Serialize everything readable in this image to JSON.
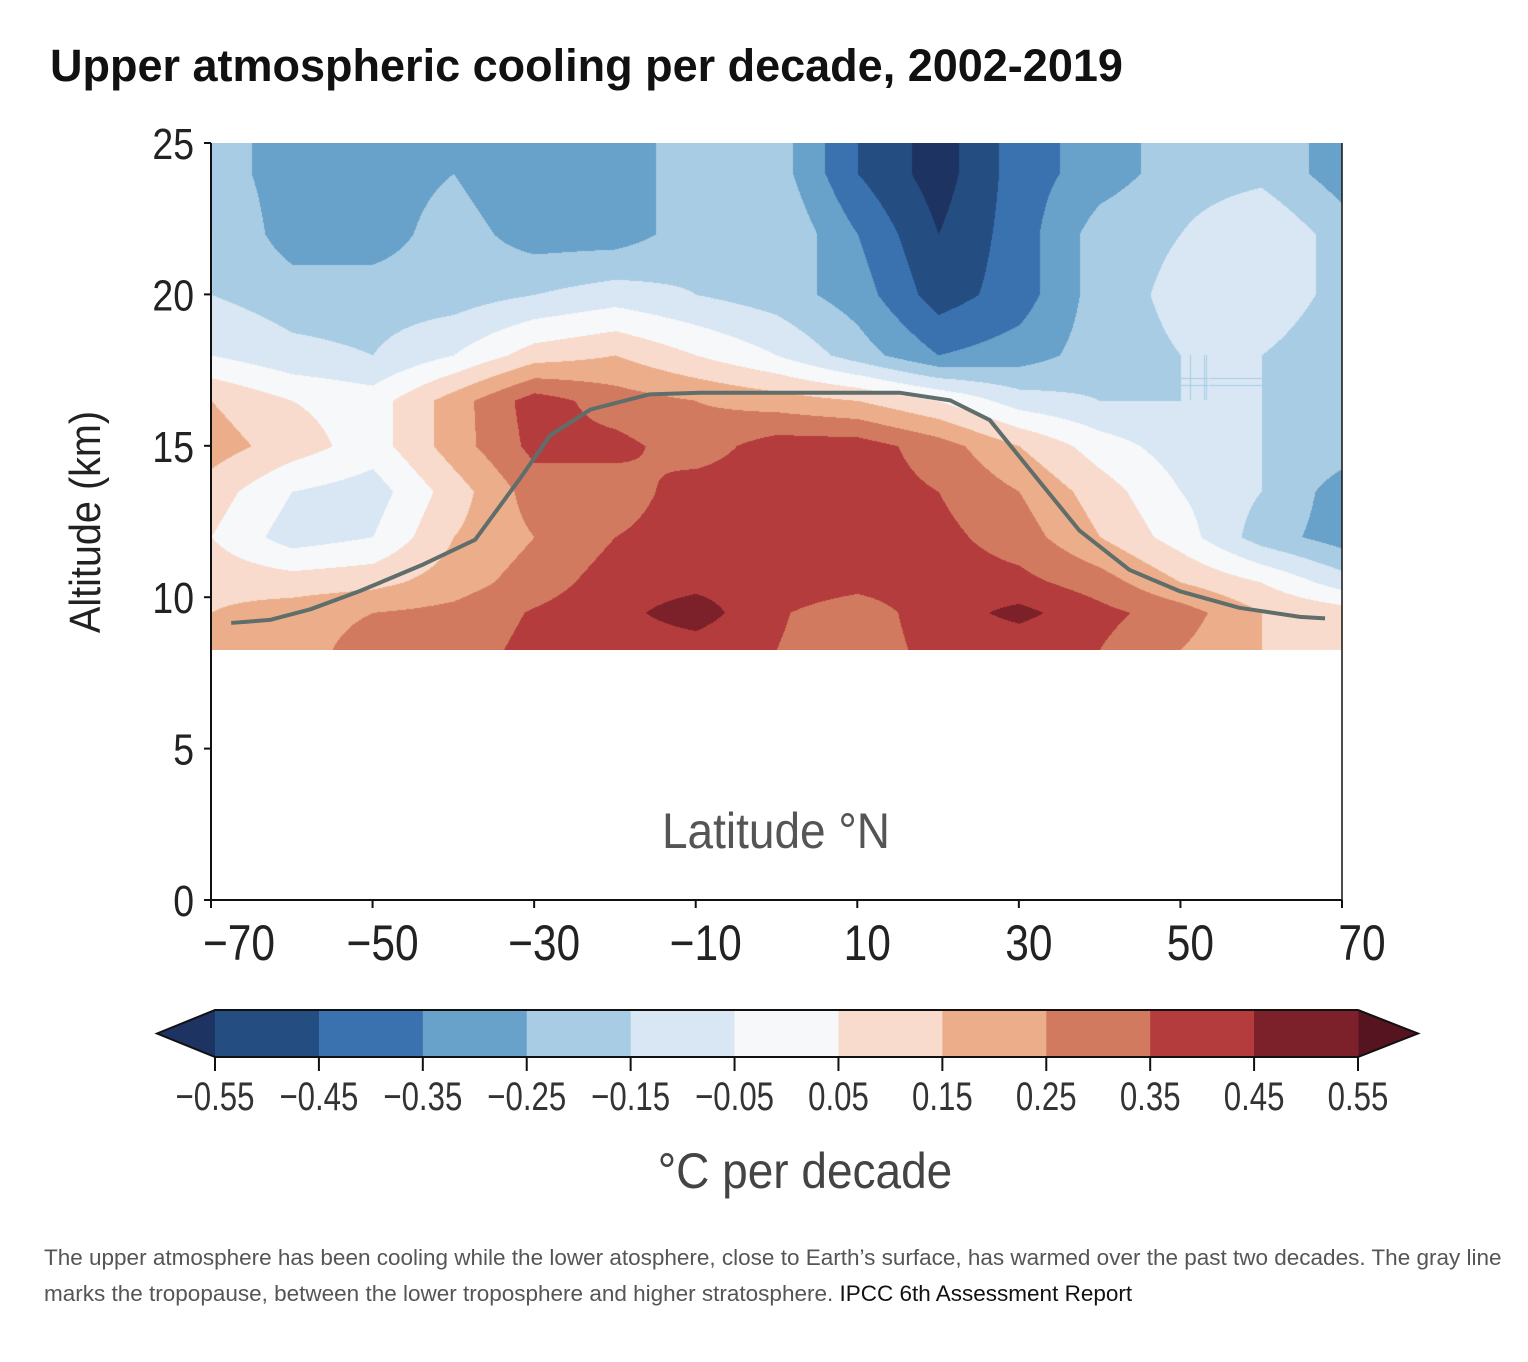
{
  "chart_data": {
    "type": "heatmap",
    "title": "Upper atmospheric cooling per decade, 2002-2019",
    "xlabel": "Latitude °N",
    "ylabel": "Altitude (km)",
    "xlim": [
      -70,
      70
    ],
    "ylim": [
      0,
      25
    ],
    "xticks": [
      "−70",
      "−50",
      "−30",
      "−10",
      "10",
      "30",
      "50",
      "70"
    ],
    "xtick_values": [
      -70,
      -50,
      -30,
      -10,
      10,
      30,
      50,
      70
    ],
    "yticks": [
      "0",
      "5",
      "10",
      "15",
      "20",
      "25"
    ],
    "ytick_values": [
      0,
      5,
      10,
      15,
      20,
      25
    ],
    "data_alt_range": [
      8.25,
      25
    ],
    "lat": [
      -70,
      -60,
      -50,
      -40,
      -30,
      -20,
      -10,
      0,
      10,
      20,
      30,
      40,
      50,
      60,
      70
    ],
    "alt": [
      8.3,
      9.5,
      10.5,
      12,
      13.5,
      15,
      16.5,
      18,
      20,
      22,
      24,
      25
    ],
    "values": [
      [
        0.15,
        0.2,
        0.3,
        0.3,
        0.38,
        0.4,
        0.4,
        0.35,
        0.3,
        0.38,
        0.38,
        0.35,
        0.25,
        0.15,
        0.1
      ],
      [
        0.15,
        0.2,
        0.25,
        0.28,
        0.36,
        0.42,
        0.5,
        0.36,
        0.3,
        0.4,
        0.48,
        0.38,
        0.3,
        0.15,
        0.1
      ],
      [
        0.12,
        0.1,
        0.12,
        0.2,
        0.3,
        0.4,
        0.42,
        0.4,
        0.38,
        0.4,
        0.38,
        0.3,
        0.15,
        0.05,
        -0.1
      ],
      [
        0.05,
        -0.1,
        -0.05,
        0.15,
        0.25,
        0.35,
        0.4,
        0.4,
        0.4,
        0.38,
        0.3,
        0.15,
        0.0,
        -0.2,
        -0.3
      ],
      [
        0.1,
        -0.05,
        -0.1,
        0.1,
        0.3,
        0.3,
        0.4,
        0.4,
        0.4,
        0.35,
        0.25,
        0.1,
        -0.05,
        -0.15,
        -0.3
      ],
      [
        0.2,
        0.1,
        0.0,
        0.2,
        0.38,
        0.38,
        0.3,
        0.4,
        0.4,
        0.3,
        0.15,
        0.0,
        -0.1,
        -0.15,
        -0.2
      ],
      [
        0.15,
        0.05,
        0.0,
        0.2,
        0.4,
        0.3,
        0.25,
        0.2,
        0.15,
        0.05,
        -0.1,
        -0.15,
        -0.15,
        -0.15,
        -0.25
      ],
      [
        -0.05,
        -0.12,
        -0.15,
        -0.05,
        0.1,
        0.15,
        0.05,
        -0.05,
        -0.2,
        -0.35,
        -0.3,
        -0.2,
        -0.15,
        -0.15,
        -0.25
      ],
      [
        -0.15,
        -0.2,
        -0.2,
        -0.2,
        -0.15,
        -0.1,
        -0.15,
        -0.2,
        -0.3,
        -0.5,
        -0.4,
        -0.2,
        -0.12,
        -0.05,
        -0.2
      ],
      [
        -0.15,
        -0.3,
        -0.3,
        -0.2,
        -0.3,
        -0.3,
        -0.2,
        -0.15,
        -0.35,
        -0.55,
        -0.4,
        -0.2,
        -0.15,
        -0.05,
        -0.2
      ],
      [
        -0.2,
        -0.3,
        -0.3,
        -0.25,
        -0.35,
        -0.3,
        -0.2,
        -0.2,
        -0.45,
        -0.6,
        -0.4,
        -0.3,
        -0.2,
        -0.18,
        -0.3
      ],
      [
        -0.2,
        -0.3,
        -0.3,
        -0.25,
        -0.35,
        -0.3,
        -0.2,
        -0.2,
        -0.45,
        -0.6,
        -0.4,
        -0.3,
        -0.2,
        -0.18,
        -0.3
      ]
    ],
    "tropopause": {
      "name": "tropopause",
      "color": "#5f6e6b",
      "lat": [
        -67.5,
        -62.7,
        -57.7,
        -51.6,
        -44,
        -37.3,
        -31.8,
        -28,
        -23,
        -15.7,
        -9.5,
        15.3,
        21.5,
        26.4,
        31.4,
        37.5,
        43.7,
        49.9,
        57.3,
        64.8,
        67.9
      ],
      "alt": [
        9.15,
        9.25,
        9.6,
        10.2,
        11.05,
        11.9,
        13.9,
        15.35,
        16.2,
        16.7,
        16.75,
        16.75,
        16.5,
        15.85,
        14.2,
        12.2,
        10.9,
        10.2,
        9.65,
        9.35,
        9.3
      ]
    },
    "colorbar": {
      "label": "°C per decade",
      "levels": [
        -0.55,
        -0.45,
        -0.35,
        -0.25,
        -0.15,
        -0.05,
        0.05,
        0.15,
        0.25,
        0.35,
        0.45,
        0.55
      ],
      "tick_labels": [
        "−0.55",
        "−0.45",
        "−0.35",
        "−0.25",
        "−0.15",
        "−0.05",
        "0.05",
        "0.15",
        "0.25",
        "0.35",
        "0.45",
        "0.55"
      ],
      "colors": [
        "#1d3361",
        "#244d82",
        "#3a72b0",
        "#68a1c9",
        "#a8cce3",
        "#d8e7f3",
        "#f6f8fa",
        "#f8dbcc",
        "#ecae8a",
        "#d27a60",
        "#b43c3c",
        "#7c2029",
        "#561420"
      ],
      "extend": "both"
    }
  },
  "caption": {
    "text": "The upper atmosphere has been cooling while the lower atosphere, close to Earth’s surface, has warmed over the past two decades. The gray line marks the tropopause, between the lower troposphere and higher stratosphere. ",
    "source": "IPCC 6th Assessment Report"
  }
}
